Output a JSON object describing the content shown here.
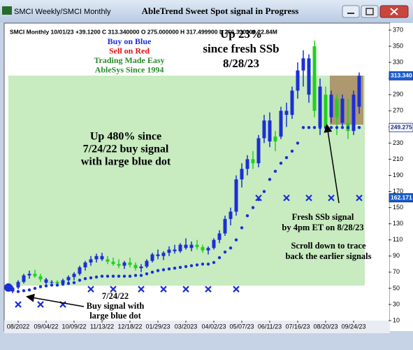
{
  "window": {
    "tab": "SMCI Weekly/SMCI Monthly",
    "title": "AbleTrend Sweet Spot signal in Progress"
  },
  "chart_data": {
    "type": "candlestick",
    "info": "SMCI  Monthly 10/01/23 +39.1200 C 313.340000 O 275.000000 H 317.499900 L 266.330000 22.84M",
    "categories": [
      null,
      "08/2022",
      null,
      null,
      null,
      null,
      "09/04/22",
      null,
      null,
      null,
      null,
      "10/09/22",
      null,
      null,
      null,
      null,
      "11/13/22",
      null,
      null,
      null,
      null,
      "12/18/22",
      null,
      null,
      null,
      null,
      "01/29/23",
      null,
      null,
      null,
      null,
      "03/2023",
      null,
      null,
      null,
      null,
      "04/02/23",
      null,
      null,
      null,
      null,
      "05/07/23",
      null,
      null,
      null,
      null,
      "06/11/23",
      null,
      null,
      null,
      null,
      "07/16/23",
      null,
      null,
      null,
      null,
      "08/20/23",
      null,
      null,
      null,
      null,
      "09/24/23",
      null
    ],
    "open": [
      46,
      51,
      58,
      66,
      68,
      65,
      61,
      57,
      58,
      56,
      60,
      64,
      68,
      76,
      82,
      86,
      90,
      86,
      83,
      80,
      78,
      82,
      79,
      75,
      77,
      84,
      92,
      90,
      94,
      98,
      96,
      104,
      100,
      104,
      101,
      97,
      100,
      110,
      118,
      136,
      145,
      185,
      198,
      210,
      205,
      236,
      258,
      232,
      238,
      270,
      265,
      295,
      320,
      335,
      270,
      300,
      250,
      290,
      262,
      285,
      255,
      245,
      275
    ],
    "high": [
      53,
      60,
      68,
      72,
      73,
      68,
      63,
      60,
      60,
      62,
      66,
      70,
      78,
      84,
      90,
      93,
      94,
      90,
      88,
      86,
      84,
      88,
      82,
      80,
      86,
      94,
      98,
      96,
      102,
      104,
      106,
      112,
      108,
      110,
      104,
      102,
      112,
      122,
      140,
      150,
      190,
      205,
      215,
      220,
      240,
      265,
      268,
      245,
      275,
      280,
      300,
      330,
      345,
      340,
      357,
      310,
      300,
      295,
      290,
      290,
      285,
      295,
      317.4999
    ],
    "low": [
      44,
      49,
      56,
      62,
      63,
      58,
      55,
      54,
      53,
      54,
      57,
      60,
      66,
      72,
      78,
      82,
      84,
      80,
      78,
      75,
      74,
      76,
      72,
      70,
      75,
      82,
      86,
      85,
      90,
      93,
      94,
      98,
      96,
      98,
      94,
      92,
      98,
      106,
      115,
      128,
      140,
      175,
      190,
      198,
      200,
      230,
      225,
      220,
      235,
      250,
      260,
      285,
      300,
      280,
      262,
      240,
      245,
      255,
      240,
      250,
      235,
      240,
      266.33
    ],
    "close": [
      51,
      58,
      66,
      68,
      65,
      61,
      57,
      58,
      56,
      60,
      64,
      68,
      76,
      82,
      86,
      90,
      86,
      83,
      80,
      78,
      82,
      79,
      75,
      77,
      84,
      92,
      90,
      94,
      98,
      96,
      104,
      100,
      104,
      101,
      97,
      100,
      110,
      118,
      136,
      145,
      185,
      198,
      210,
      205,
      236,
      258,
      232,
      238,
      270,
      265,
      295,
      320,
      335,
      290,
      350,
      250,
      290,
      262,
      285,
      255,
      245,
      290,
      313.34
    ],
    "colors": [
      "#1a2fd6",
      "#1a2fd6",
      "#1a2fd6",
      "#1a2fd6",
      "#22d022",
      "#22d022",
      "#1a2fd6",
      "#1a2fd6",
      "#22d022",
      "#1a2fd6",
      "#1a2fd6",
      "#1a2fd6",
      "#1a2fd6",
      "#1a2fd6",
      "#1a2fd6",
      "#1a2fd6",
      "#1a2fd6",
      "#22d022",
      "#22d022",
      "#22d022",
      "#1a2fd6",
      "#22d022",
      "#22d022",
      "#1a2fd6",
      "#1a2fd6",
      "#1a2fd6",
      "#1a2fd6",
      "#1a2fd6",
      "#1a2fd6",
      "#1a2fd6",
      "#1a2fd6",
      "#1a2fd6",
      "#1a2fd6",
      "#22d022",
      "#22d022",
      "#1a2fd6",
      "#1a2fd6",
      "#1a2fd6",
      "#1a2fd6",
      "#1a2fd6",
      "#1a2fd6",
      "#1a2fd6",
      "#1a2fd6",
      "#22d022",
      "#1a2fd6",
      "#1a2fd6",
      "#1a2fd6",
      "#22d022",
      "#1a2fd6",
      "#1a2fd6",
      "#1a2fd6",
      "#1a2fd6",
      "#1a2fd6",
      "#1a2fd6",
      "#22d022",
      "#1a2fd6",
      "#22d022",
      "#1a2fd6",
      "#22d022",
      "#1a2fd6",
      "#22d022",
      "#1a2fd6",
      "#1a2fd6"
    ],
    "dots": {
      "color": "#1a2fd6",
      "values": [
        null,
        46,
        47,
        48,
        50,
        52,
        53,
        54,
        54,
        55,
        56,
        57,
        60,
        62,
        63,
        64,
        65,
        65,
        65,
        65,
        65,
        65,
        66,
        66,
        68,
        70,
        72,
        73,
        74,
        75,
        76,
        77,
        78,
        79,
        80,
        80,
        82,
        88,
        95,
        100,
        110,
        125,
        140,
        150,
        160,
        170,
        185,
        195,
        205,
        212,
        220,
        230,
        249.275,
        249.275,
        249.275,
        249.275,
        249.275,
        249.275,
        249.275,
        249.275,
        249.275,
        249.275,
        249.275
      ]
    },
    "signal_dot": {
      "color": "#1a2fd6",
      "values": [
        51,
        null,
        null,
        null,
        null,
        null,
        null,
        null,
        null,
        null,
        null,
        null,
        null,
        null,
        null,
        null,
        null,
        null,
        null,
        null,
        null,
        null,
        null,
        null,
        null,
        null,
        null,
        null,
        null,
        null,
        null,
        null,
        null,
        null,
        null,
        null,
        null,
        null,
        null,
        null,
        null,
        null,
        null,
        null,
        null,
        null,
        null,
        null,
        null,
        null,
        null,
        null,
        null,
        null,
        null,
        null,
        null,
        null,
        null,
        null,
        null,
        null,
        null
      ]
    },
    "x_marks": {
      "color": "#1a2fd6",
      "values": [
        null,
        30,
        null,
        null,
        null,
        30,
        null,
        null,
        null,
        30,
        null,
        null,
        null,
        null,
        49,
        null,
        null,
        null,
        49,
        null,
        null,
        null,
        null,
        49,
        null,
        null,
        null,
        49,
        null,
        null,
        null,
        49,
        null,
        null,
        null,
        49,
        null,
        null,
        null,
        null,
        49,
        null,
        null,
        null,
        162,
        null,
        null,
        null,
        null,
        162,
        null,
        null,
        null,
        162,
        null,
        null,
        null,
        162,
        null,
        null,
        null,
        null,
        162
      ]
    },
    "ylim": [
      10,
      370
    ],
    "yticks": [
      10,
      30,
      50,
      70,
      90,
      110,
      130,
      150,
      170,
      190,
      210,
      230,
      250,
      270,
      290,
      310,
      330,
      350,
      370
    ],
    "price_labels": [
      {
        "value": 313.34,
        "label": "313.340",
        "color": "#1a5fd0",
        "text_color": "#ffffff"
      },
      {
        "value": 249.275,
        "label": "249.275",
        "color": "#ffffff",
        "text_color": "#10208a"
      },
      {
        "value": 162.171,
        "label": "162.171",
        "color": "#1a5fd0",
        "text_color": "#ffffff"
      }
    ],
    "legend_lines": [
      {
        "text": "Buy on Blue",
        "color": "#1a2fd6"
      },
      {
        "text": "Sell on Red",
        "color": "#e01010"
      },
      {
        "text": "Trading Made Easy",
        "color": "#2a8a2a"
      },
      {
        "text": "AbleSys Since 1994",
        "color": "#2a8a2a"
      }
    ],
    "annotations": [
      {
        "lines": [
          "Up 23%",
          "since fresh SSb",
          "8/28/23"
        ]
      },
      {
        "lines": [
          "Up 480% since",
          "7/24/22 buy signal",
          "with large blue dot"
        ]
      },
      {
        "lines": [
          "Fresh SSb signal",
          "by 4pm ET on 8/28/23"
        ]
      },
      {
        "lines": [
          "Scroll down to trace",
          "back the earlier signals"
        ]
      },
      {
        "lines": [
          "7/24/22",
          "Buy signal  with",
          "large blue dot"
        ]
      }
    ]
  }
}
